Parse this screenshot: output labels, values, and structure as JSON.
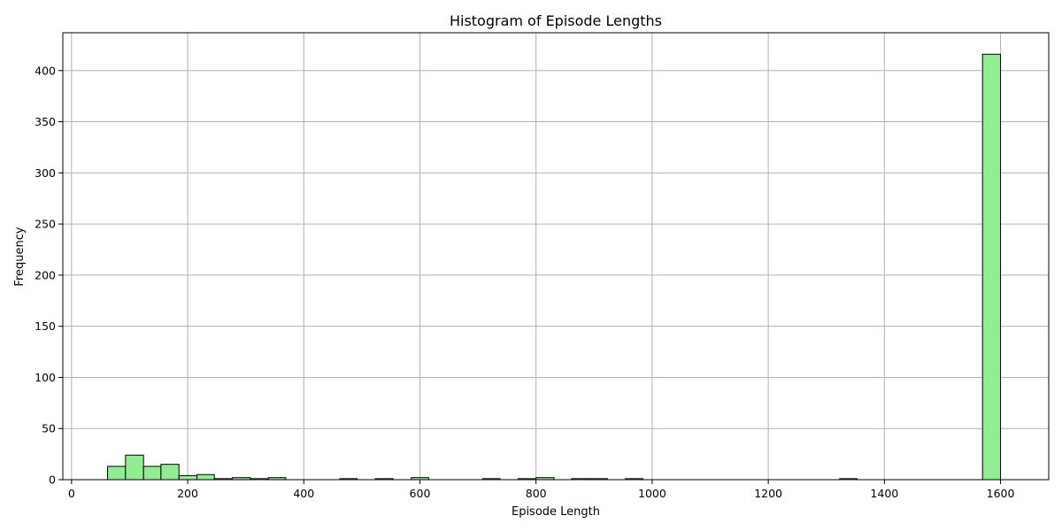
{
  "chart_data": {
    "type": "bar",
    "title": "Histogram of Episode Lengths",
    "xlabel": "Episode Length",
    "ylabel": "Frequency",
    "xlim": [
      -15,
      1683
    ],
    "ylim": [
      0,
      437
    ],
    "xticks": [
      0,
      200,
      400,
      600,
      800,
      1000,
      1200,
      1400,
      1600
    ],
    "yticks": [
      0,
      50,
      100,
      150,
      200,
      250,
      300,
      350,
      400
    ],
    "grid": true,
    "bar_color": "#90ee90",
    "edge_color": "#000000",
    "bins": [
      {
        "start": 62,
        "end": 93,
        "count": 13
      },
      {
        "start": 93,
        "end": 124,
        "count": 24
      },
      {
        "start": 124,
        "end": 154,
        "count": 13
      },
      {
        "start": 154,
        "end": 185,
        "count": 15
      },
      {
        "start": 185,
        "end": 216,
        "count": 4
      },
      {
        "start": 216,
        "end": 246,
        "count": 5
      },
      {
        "start": 246,
        "end": 277,
        "count": 1
      },
      {
        "start": 277,
        "end": 308,
        "count": 2
      },
      {
        "start": 308,
        "end": 339,
        "count": 1
      },
      {
        "start": 339,
        "end": 369,
        "count": 2
      },
      {
        "start": 462,
        "end": 492,
        "count": 1
      },
      {
        "start": 523,
        "end": 554,
        "count": 1
      },
      {
        "start": 585,
        "end": 615,
        "count": 2
      },
      {
        "start": 708,
        "end": 738,
        "count": 1
      },
      {
        "start": 769,
        "end": 800,
        "count": 1
      },
      {
        "start": 800,
        "end": 831,
        "count": 2
      },
      {
        "start": 861,
        "end": 892,
        "count": 1
      },
      {
        "start": 892,
        "end": 923,
        "count": 1
      },
      {
        "start": 954,
        "end": 984,
        "count": 1
      },
      {
        "start": 1323,
        "end": 1353,
        "count": 1
      },
      {
        "start": 1569,
        "end": 1600,
        "count": 416
      }
    ]
  }
}
